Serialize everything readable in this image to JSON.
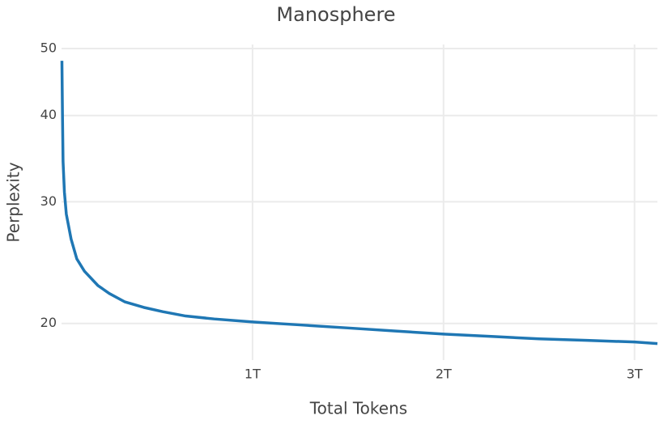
{
  "chart_data": {
    "type": "line",
    "title": "Manosphere",
    "x_label": "Total Tokens",
    "y_label": "Perplexity",
    "x": [
      2000000000,
      5000000000,
      8000000000,
      15000000000,
      25000000000,
      50000000000,
      80000000000,
      120000000000,
      190000000000,
      250000000000,
      330000000000,
      430000000000,
      530000000000,
      650000000000,
      800000000000,
      1000000000000,
      1250000000000,
      1500000000000,
      1750000000000,
      2000000000000,
      2250000000000,
      2500000000000,
      2750000000000,
      3000000000000,
      3120000000000
    ],
    "series": [
      {
        "name": "Perplexity",
        "color": "#1f77b4",
        "values": [
          48,
          40,
          34.3,
          31,
          28.8,
          26.5,
          24.8,
          23.8,
          22.7,
          22.1,
          21.5,
          21.1,
          20.8,
          20.5,
          20.3,
          20.1,
          19.9,
          19.7,
          19.5,
          19.3,
          19.15,
          19.0,
          18.9,
          18.8,
          18.7
        ]
      }
    ],
    "xlim": [
      0,
      3120000000000
    ],
    "xticks": [
      {
        "value": 1000000000000,
        "label": "1T"
      },
      {
        "value": 2000000000000,
        "label": "2T"
      },
      {
        "value": 3000000000000,
        "label": "3T"
      }
    ],
    "ylim": [
      17.7,
      50
    ],
    "yticks": [
      20,
      30,
      40,
      50
    ],
    "y_log": true,
    "grid": true
  }
}
